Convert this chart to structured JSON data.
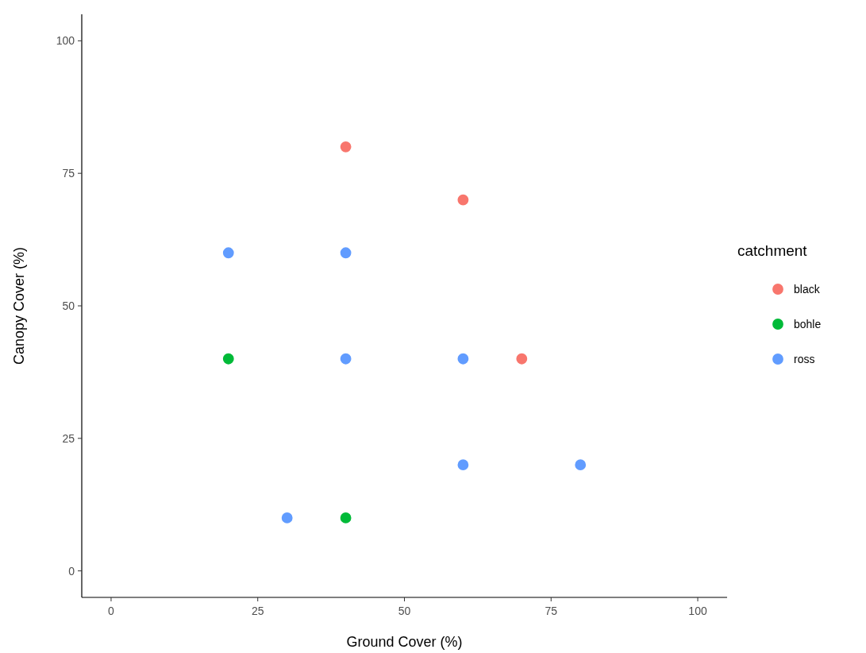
{
  "chart_data": {
    "type": "scatter",
    "xlabel": "Ground Cover (%)",
    "ylabel": "Canopy Cover (%)",
    "legend_title": "catchment",
    "legend": "right",
    "grid": false,
    "marker": "circle",
    "xlim": [
      -5,
      105
    ],
    "xticks": [
      0,
      25,
      50,
      75,
      100
    ],
    "ylim": [
      -5,
      105
    ],
    "yticks": [
      0,
      25,
      50,
      75,
      100
    ],
    "series": [
      {
        "name": "black",
        "color": "#f8766d",
        "x": [
          40,
          60,
          70
        ],
        "values": [
          80,
          70,
          40
        ]
      },
      {
        "name": "bohle",
        "color": "#00ba38",
        "x": [
          20,
          40
        ],
        "values": [
          40,
          10
        ]
      },
      {
        "name": "ross",
        "color": "#619cff",
        "x": [
          20,
          40,
          40,
          60,
          60,
          80,
          30
        ],
        "values": [
          60,
          60,
          40,
          40,
          20,
          20,
          10
        ]
      }
    ]
  }
}
